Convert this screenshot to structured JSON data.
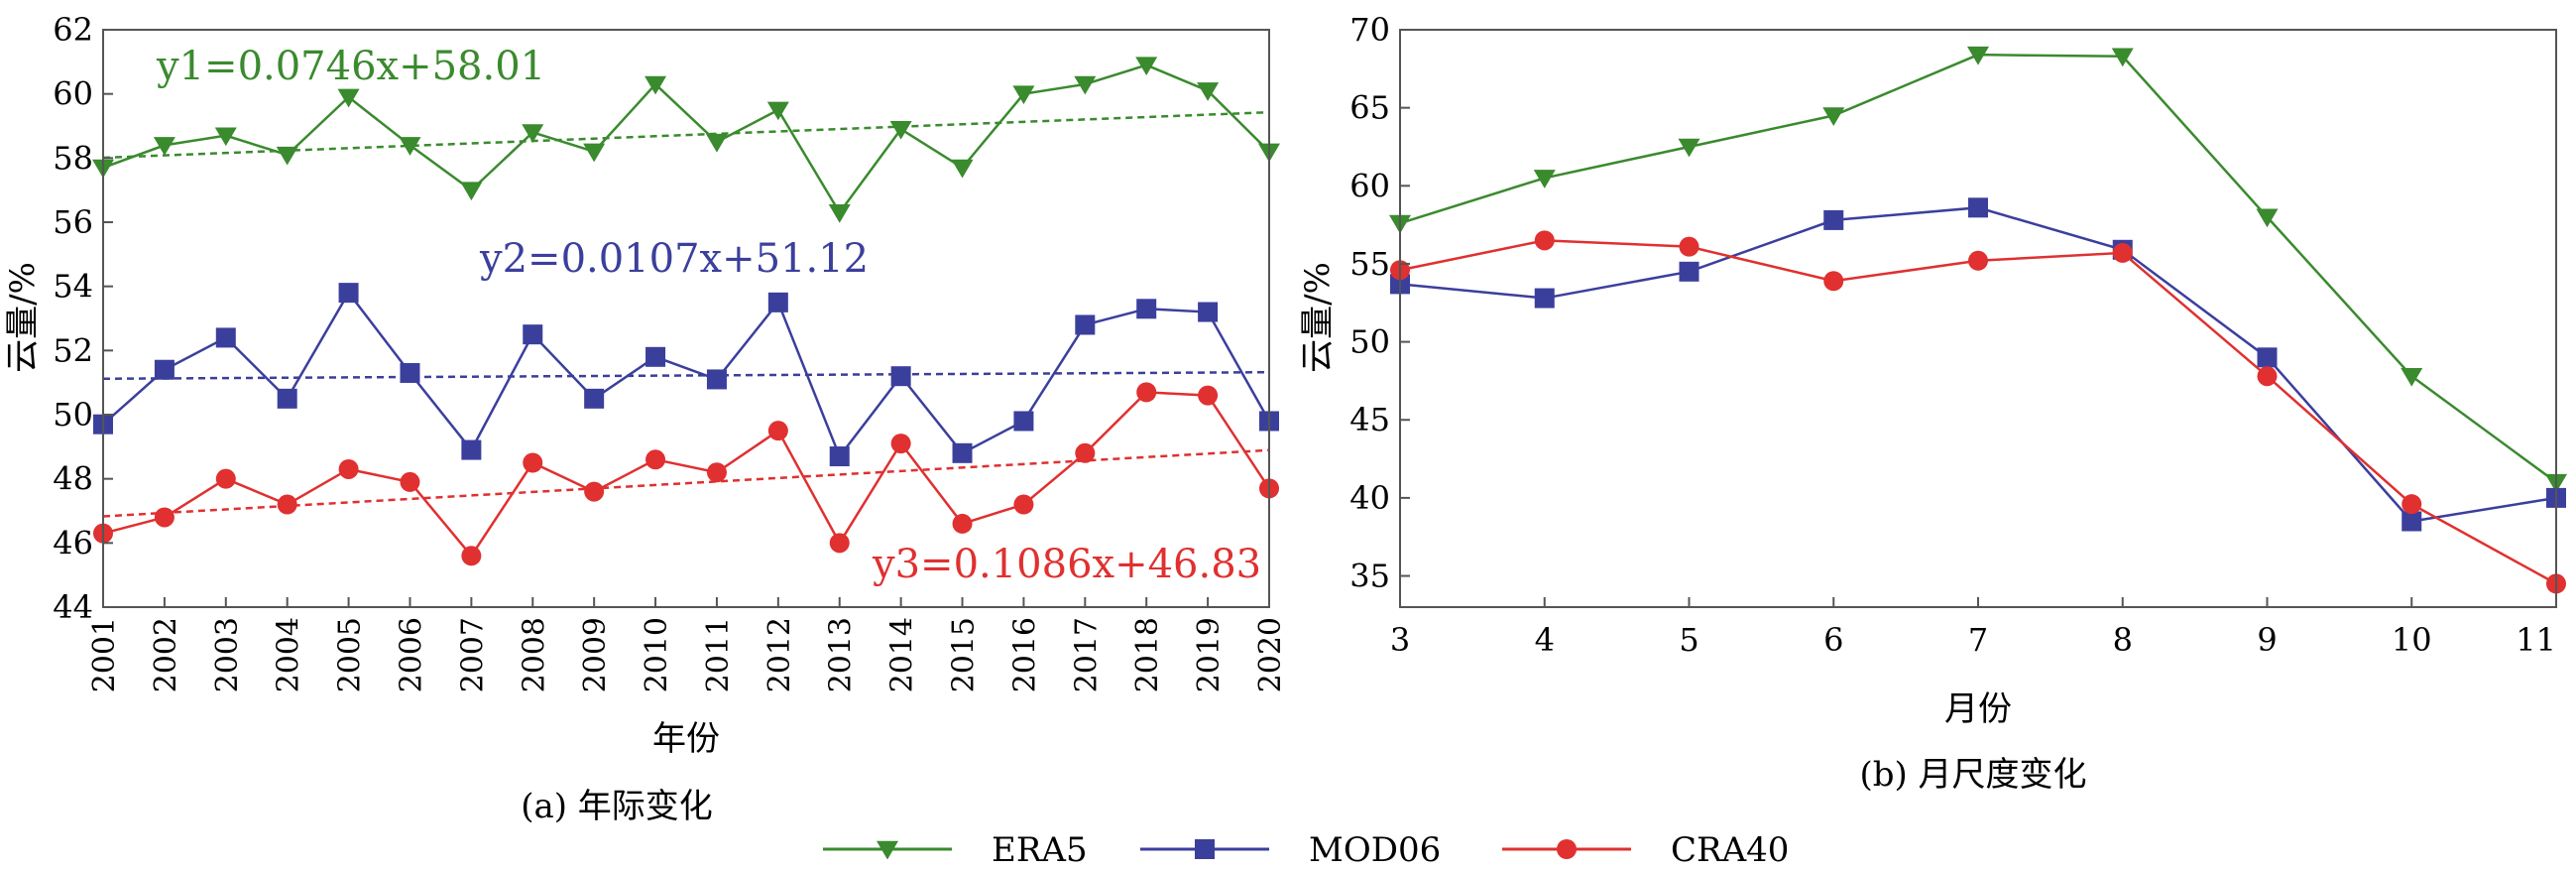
{
  "figure": {
    "legend": [
      {
        "name": "ERA5",
        "color": "#3a8a2e",
        "marker": "triangle-down"
      },
      {
        "name": "MOD06",
        "color": "#3b3f9c",
        "marker": "square"
      },
      {
        "name": "CRA40",
        "color": "#e03030",
        "marker": "circle"
      }
    ]
  },
  "chart_data": [
    {
      "type": "line",
      "caption": "(a) 年际变化",
      "xlabel": "年份",
      "ylabel": "云量/%",
      "ylim": [
        44,
        62
      ],
      "yticks": [
        44,
        46,
        48,
        50,
        52,
        54,
        56,
        58,
        60,
        62
      ],
      "x": [
        "2001",
        "2002",
        "2003",
        "2004",
        "2005",
        "2006",
        "2007",
        "2008",
        "2009",
        "2010",
        "2011",
        "2012",
        "2013",
        "2014",
        "2015",
        "2016",
        "2017",
        "2018",
        "2019",
        "2020"
      ],
      "grid": false,
      "series": [
        {
          "name": "ERA5",
          "color": "#3a8a2e",
          "marker": "triangle-down",
          "values": [
            57.7,
            58.4,
            58.7,
            58.1,
            59.9,
            58.4,
            57.0,
            58.8,
            58.2,
            60.3,
            58.5,
            59.5,
            56.3,
            58.9,
            57.7,
            60.0,
            60.3,
            60.9,
            60.1,
            58.2
          ]
        },
        {
          "name": "MOD06",
          "color": "#3b3f9c",
          "marker": "square",
          "values": [
            49.7,
            51.4,
            52.4,
            50.5,
            53.8,
            51.3,
            48.9,
            52.5,
            50.5,
            51.8,
            51.1,
            53.5,
            48.7,
            51.2,
            48.8,
            49.8,
            52.8,
            53.3,
            53.2,
            49.8
          ]
        },
        {
          "name": "CRA40",
          "color": "#e03030",
          "marker": "circle",
          "values": [
            46.3,
            46.8,
            48.0,
            47.2,
            48.3,
            47.9,
            45.6,
            48.5,
            47.6,
            48.6,
            48.2,
            49.5,
            46.0,
            49.1,
            46.6,
            47.2,
            48.8,
            50.7,
            50.6,
            47.7
          ]
        }
      ],
      "trendlines": [
        {
          "series": "ERA5",
          "label": "y1=0.0746x+58.01",
          "slope": 0.0746,
          "intercept": 58.01
        },
        {
          "series": "MOD06",
          "label": "y2=0.0107x+51.12",
          "slope": 0.0107,
          "intercept": 51.12
        },
        {
          "series": "CRA40",
          "label": "y3=0.1086x+46.83",
          "slope": 0.1086,
          "intercept": 46.83
        }
      ]
    },
    {
      "type": "line",
      "caption": "(b) 月尺度变化",
      "xlabel": "月份",
      "ylabel": "云量/%",
      "ylim": [
        33,
        70
      ],
      "yticks": [
        35,
        40,
        45,
        50,
        55,
        60,
        65,
        70
      ],
      "x": [
        3,
        4,
        5,
        6,
        7,
        8,
        9,
        10,
        11
      ],
      "grid": false,
      "series": [
        {
          "name": "ERA5",
          "color": "#3a8a2e",
          "marker": "triangle-down",
          "values": [
            57.6,
            60.5,
            62.5,
            64.5,
            68.4,
            68.3,
            58.0,
            47.8,
            41.0
          ]
        },
        {
          "name": "MOD06",
          "color": "#3b3f9c",
          "marker": "square",
          "values": [
            53.7,
            52.8,
            54.5,
            57.8,
            58.6,
            55.9,
            49.0,
            38.5,
            40.0
          ]
        },
        {
          "name": "CRA40",
          "color": "#e03030",
          "marker": "circle",
          "values": [
            54.6,
            56.5,
            56.1,
            53.9,
            55.2,
            55.7,
            47.8,
            39.6,
            34.5
          ]
        }
      ]
    }
  ]
}
